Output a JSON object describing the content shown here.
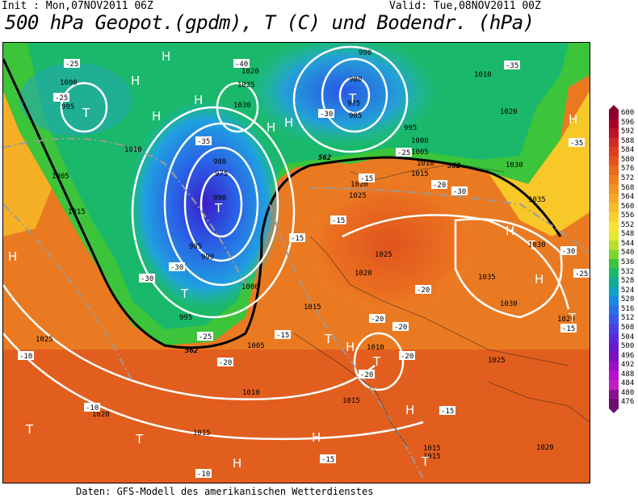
{
  "header": {
    "init": "Init : Mon,07NOV2011 06Z",
    "valid": "Valid: Tue,08NOV2011 00Z",
    "title": "500 hPa Geopot.(gpdm), T (C) und Bodendr. (hPa)"
  },
  "footer": "Daten: GFS-Modell des amerikanischen Wetterdienstes",
  "colorbar": {
    "levels": [
      "600",
      "596",
      "592",
      "588",
      "584",
      "580",
      "576",
      "572",
      "568",
      "564",
      "560",
      "556",
      "552",
      "548",
      "544",
      "540",
      "536",
      "532",
      "528",
      "524",
      "520",
      "516",
      "512",
      "508",
      "504",
      "500",
      "496",
      "492",
      "488",
      "484",
      "480",
      "476"
    ],
    "colors": [
      "#8b0030",
      "#a8002a",
      "#c0102a",
      "#d42828",
      "#e03c20",
      "#e5531f",
      "#ea6a20",
      "#ef8022",
      "#f29424",
      "#f5a826",
      "#f7bc28",
      "#f9d02a",
      "#fbe22e",
      "#e6e82a",
      "#b8e02a",
      "#7ed42c",
      "#3cc43a",
      "#1ab86a",
      "#10ac98",
      "#10a0c4",
      "#1a88e0",
      "#2a6ee8",
      "#3a56e8",
      "#4a3ee0",
      "#5a2ad8",
      "#6a18cc",
      "#7e10c0",
      "#9a10c8",
      "#b810d0",
      "#c020c0",
      "#8a1490",
      "#6a0e70"
    ]
  },
  "map": {
    "pressure_labels": [
      "1000",
      "995",
      "1010",
      "1005",
      "1015",
      "1020",
      "1025",
      "1030",
      "990",
      "985",
      "980",
      "975",
      "1035"
    ],
    "temperature_labels": [
      "-25",
      "-30",
      "-35",
      "-40",
      "-20",
      "-15",
      "-10"
    ],
    "contour_562_label": "562",
    "highs": [
      "H"
    ],
    "lows": [
      "T"
    ]
  }
}
